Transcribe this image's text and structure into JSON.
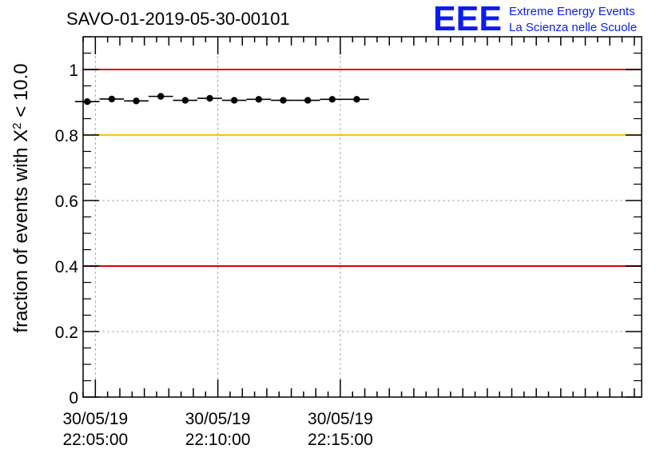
{
  "chart_data": {
    "type": "scatter",
    "title": "SAVO-01-2019-05-30-00101",
    "ylabel_prefix": "fraction of events with ",
    "ylabel_symbol": "X",
    "ylabel_exponent": "2",
    "ylabel_suffix": " < 10.0",
    "xlabel": "",
    "ylim": [
      0,
      1.1
    ],
    "y_ticks": [
      0,
      0.2,
      0.4,
      0.6,
      0.8,
      1
    ],
    "y_tick_labels": [
      "0",
      "0.2",
      "0.4",
      "0.6",
      "0.8",
      "1"
    ],
    "x_range_minutes": [
      -0.5,
      22.3
    ],
    "x_major_ticks": [
      {
        "minute": 0,
        "date": "30/05/19",
        "time": "22:05:00"
      },
      {
        "minute": 5,
        "date": "30/05/19",
        "time": "22:10:00"
      },
      {
        "minute": 10,
        "date": "30/05/19",
        "time": "22:15:00"
      }
    ],
    "bin_width_minutes": 1,
    "points_x_minutes": [
      -0.33,
      0.67,
      1.67,
      2.67,
      3.67,
      4.67,
      5.67,
      6.67,
      7.67,
      8.67,
      9.67,
      10.67
    ],
    "points_y": [
      0.902,
      0.91,
      0.904,
      0.918,
      0.906,
      0.912,
      0.906,
      0.909,
      0.906,
      0.906,
      0.909,
      0.909
    ],
    "reference_lines": [
      {
        "y": 1.0,
        "color": "#e00000"
      },
      {
        "y": 0.8,
        "color": "#f5c400"
      },
      {
        "y": 0.4,
        "color": "#e00000"
      }
    ],
    "grid": true,
    "legend": "none"
  },
  "logo": {
    "mark": "EEE",
    "line1": "Extreme Energy Events",
    "line2": "La Scienza nelle Scuole",
    "color": "#0a1cf0"
  }
}
